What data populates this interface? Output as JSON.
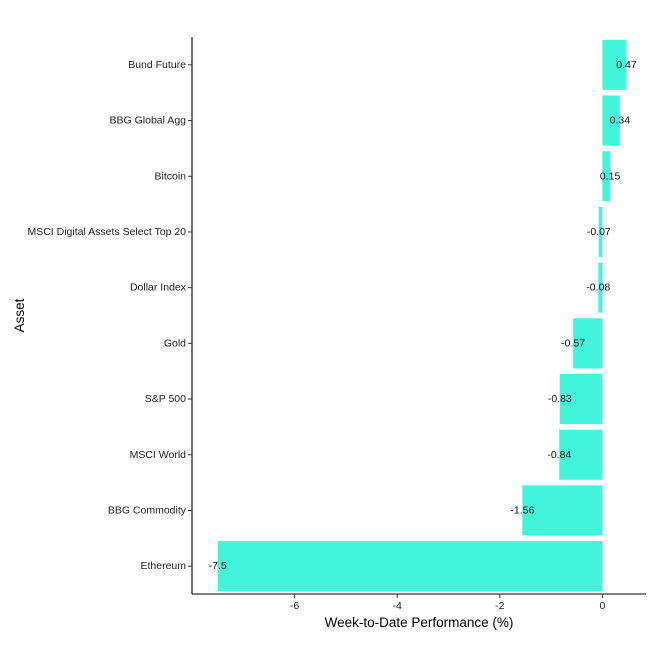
{
  "chart_data": {
    "type": "bar",
    "orientation": "horizontal",
    "title": "",
    "xlabel": "Week-to-Date Performance (%)",
    "ylabel": "Asset",
    "xlim": [
      -8.0,
      0.85
    ],
    "xticks": [
      -6,
      -4,
      -2,
      0
    ],
    "categories": [
      "Bund Future",
      "BBG Global Agg",
      "Bitcoin",
      "MSCI Digital Assets Select Top 20",
      "Dollar Index",
      "Gold",
      "S&P 500",
      "MSCI World",
      "BBG Commodity",
      "Ethereum"
    ],
    "values": [
      0.47,
      0.34,
      0.15,
      -0.07,
      -0.08,
      -0.57,
      -0.83,
      -0.84,
      -1.56,
      -7.5
    ],
    "value_labels": [
      "0.47",
      "0.34",
      "0.15",
      "-0.07",
      "-0.08",
      "-0.57",
      "-0.83",
      "-0.84",
      "-1.56",
      "-7.5"
    ],
    "bar_color": "#40F5D9",
    "grid": false,
    "legend": "none"
  }
}
